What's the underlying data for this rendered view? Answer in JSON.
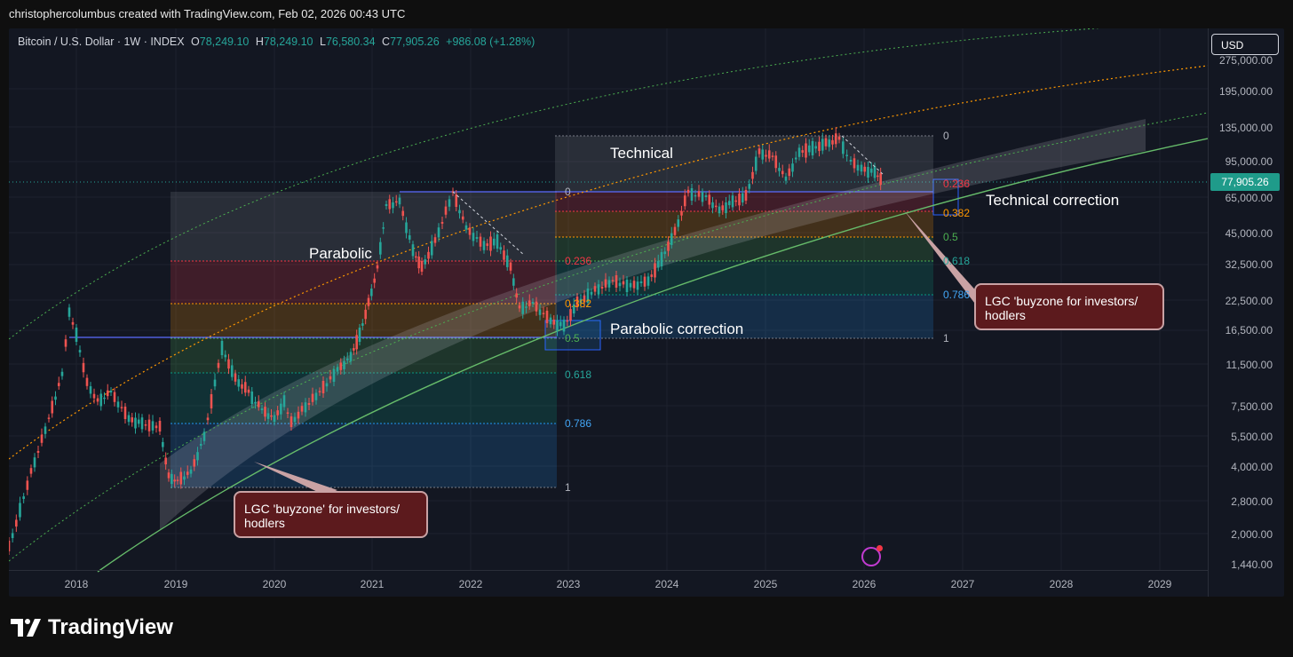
{
  "header": {
    "attribution": "christophercolumbus created with TradingView.com, Feb 02, 2026 00:43 UTC"
  },
  "legend": {
    "symbol": "Bitcoin / U.S. Dollar · 1W · INDEX",
    "o_label": "O",
    "o_value": "78,249.10",
    "h_label": "H",
    "h_value": "78,249.10",
    "l_label": "L",
    "l_value": "76,580.34",
    "c_label": "C",
    "c_value": "77,905.26",
    "change": "+986.08 (+1.28%)"
  },
  "currency_button": "USD",
  "price_axis": [
    "275,000.00",
    "195,000.00",
    "135,000.00",
    "95,000.00",
    "65,000.00",
    "45,000.00",
    "32,500.00",
    "22,500.00",
    "16,500.00",
    "11,500.00",
    "7,500.00",
    "5,500.00",
    "4,000.00",
    "2,800.00",
    "2,000.00",
    "1,440.00"
  ],
  "current_price": "77,905.26",
  "time_axis": [
    "2018",
    "2019",
    "2020",
    "2021",
    "2022",
    "2023",
    "2024",
    "2025",
    "2026",
    "2027",
    "2028",
    "2029"
  ],
  "fib_parabolic": {
    "levels": [
      "0",
      "0.236",
      "0.382",
      "0.5",
      "0.618",
      "0.786",
      "1"
    ]
  },
  "fib_technical": {
    "levels": [
      "0",
      "0.236",
      "0.382",
      "0.5",
      "0.618",
      "0.786",
      "1"
    ]
  },
  "annotations": {
    "parabolic": "Parabolic",
    "parabolic_correction": "Parabolic correction",
    "technical": "Technical",
    "technical_correction": "Technical correction"
  },
  "callouts": {
    "left": "LGC 'buyzone' for investors/ hodlers",
    "right": "LGC 'buyzone for investors/ hodlers"
  },
  "brand": {
    "name": "TradingView"
  },
  "colors": {
    "up": "#26a69a",
    "down": "#ef5350",
    "background": "#131722"
  }
}
